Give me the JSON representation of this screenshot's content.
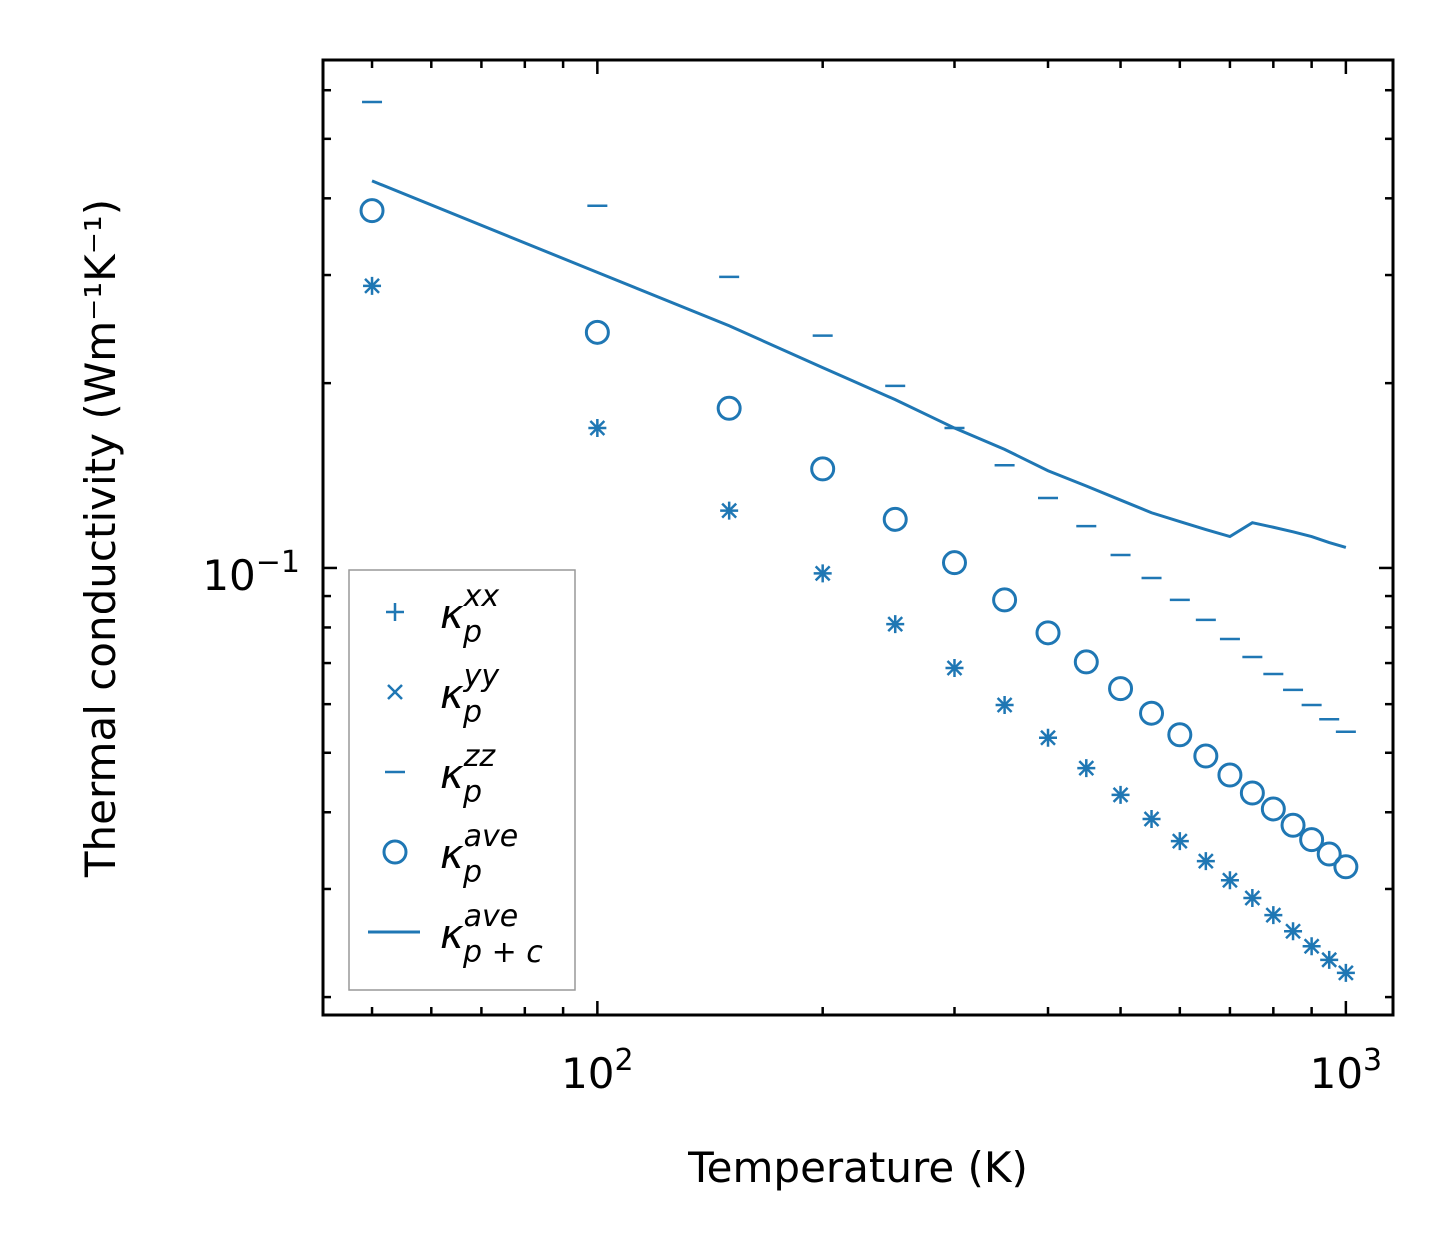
{
  "chart_data": {
    "type": "scatter",
    "title": "",
    "xlabel": "Temperature (K)",
    "ylabel": "Thermal conductivity (Wm⁻¹K⁻¹)",
    "xscale": "log",
    "yscale": "log",
    "xlim": [
      43,
      1156
    ],
    "ylim": [
      0.0187,
      0.672
    ],
    "x_major_ticks": [
      {
        "value": 100,
        "base": "10",
        "exp": "2"
      },
      {
        "value": 1000,
        "base": "10",
        "exp": "3"
      }
    ],
    "y_major_ticks": [
      {
        "value": 0.1,
        "base": "10",
        "exp": "−1"
      }
    ],
    "legend_position": "lower-left",
    "color": "#1f77b4",
    "x": [
      50,
      100,
      150,
      200,
      250,
      300,
      350,
      400,
      450,
      500,
      550,
      600,
      650,
      700,
      750,
      800,
      850,
      900,
      950,
      1000
    ],
    "series": [
      {
        "name": "kappa_p_xx",
        "label": {
          "symbol": "κ",
          "sub": "p",
          "sup": "xx"
        },
        "marker": "plus",
        "values": [
          0.288,
          0.169,
          0.124,
          0.098,
          0.081,
          0.0687,
          0.0598,
          0.0529,
          0.0472,
          0.0427,
          0.039,
          0.0359,
          0.0333,
          0.031,
          0.029,
          0.0272,
          0.0256,
          0.0242,
          0.023,
          0.0219
        ]
      },
      {
        "name": "kappa_p_yy",
        "label": {
          "symbol": "κ",
          "sub": "p",
          "sup": "yy"
        },
        "marker": "x",
        "values": [
          0.288,
          0.169,
          0.124,
          0.098,
          0.081,
          0.0687,
          0.0598,
          0.0529,
          0.0472,
          0.0427,
          0.039,
          0.0359,
          0.0333,
          0.031,
          0.029,
          0.0272,
          0.0256,
          0.0242,
          0.023,
          0.0219
        ]
      },
      {
        "name": "kappa_p_zz",
        "label": {
          "symbol": "κ",
          "sub": "p",
          "sup": "zz"
        },
        "marker": "hline",
        "values": [
          0.574,
          0.389,
          0.298,
          0.239,
          0.198,
          0.169,
          0.147,
          0.13,
          0.117,
          0.105,
          0.0963,
          0.0887,
          0.0823,
          0.0766,
          0.0716,
          0.0672,
          0.0633,
          0.0598,
          0.0567,
          0.0541
        ]
      },
      {
        "name": "kappa_p_ave",
        "label": {
          "symbol": "κ",
          "sub": "p",
          "sup": "ave"
        },
        "marker": "circle",
        "values": [
          0.382,
          0.242,
          0.182,
          0.145,
          0.12,
          0.102,
          0.0887,
          0.0784,
          0.0703,
          0.0636,
          0.058,
          0.0535,
          0.0494,
          0.046,
          0.043,
          0.0405,
          0.0381,
          0.0361,
          0.0342,
          0.0326
        ]
      },
      {
        "name": "kappa_pc_ave",
        "label": {
          "symbol": "κ",
          "sub": "p + c",
          "sup": "ave"
        },
        "marker": "line",
        "values": [
          0.427,
          0.303,
          0.248,
          0.212,
          0.188,
          0.169,
          0.156,
          0.144,
          0.136,
          0.129,
          0.123,
          0.119,
          0.1155,
          0.1125,
          0.1185,
          0.1165,
          0.1145,
          0.1125,
          0.11,
          0.108
        ]
      }
    ]
  }
}
